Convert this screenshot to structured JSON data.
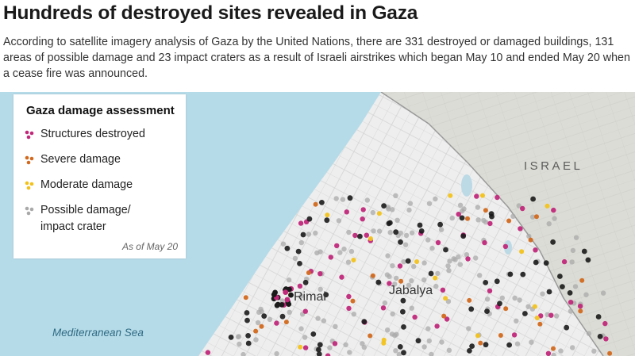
{
  "title": "Hundreds of destroyed sites revealed in Gaza",
  "subtitle": "According to satellite imagery analysis of Gaza by the United Nations, there are 331 destroyed or damaged buildings, 131 areas of possible damage and 23 impact craters as a result of Israeli airstrikes which began May 10 and ended May 20 when a cease fire was announced.",
  "legend": {
    "title": "Gaza damage assessment",
    "items": [
      {
        "label": "Structures destroyed",
        "color": "#c0287a"
      },
      {
        "label": "Severe damage",
        "color": "#d2691e"
      },
      {
        "label": "Moderate damage",
        "color": "#f2c21a"
      },
      {
        "label": "Possible damage/",
        "label2": "impact crater",
        "color": "#a9a9a9"
      }
    ],
    "date": "As of May 20"
  },
  "places": {
    "israel": "ISRAEL",
    "rimal": "Rimal",
    "jabalya": "Jabalya",
    "sea": "Mediterranean Sea"
  },
  "colors": {
    "sea": "#b6dbe8",
    "land": "#eeeeee",
    "israel_land": "#dcdcd6",
    "destroyed": "#c0287a",
    "severe": "#d2691e",
    "moderate": "#f2c21a",
    "possible": "#a9a9a9",
    "dark": "#1a1a1a"
  }
}
